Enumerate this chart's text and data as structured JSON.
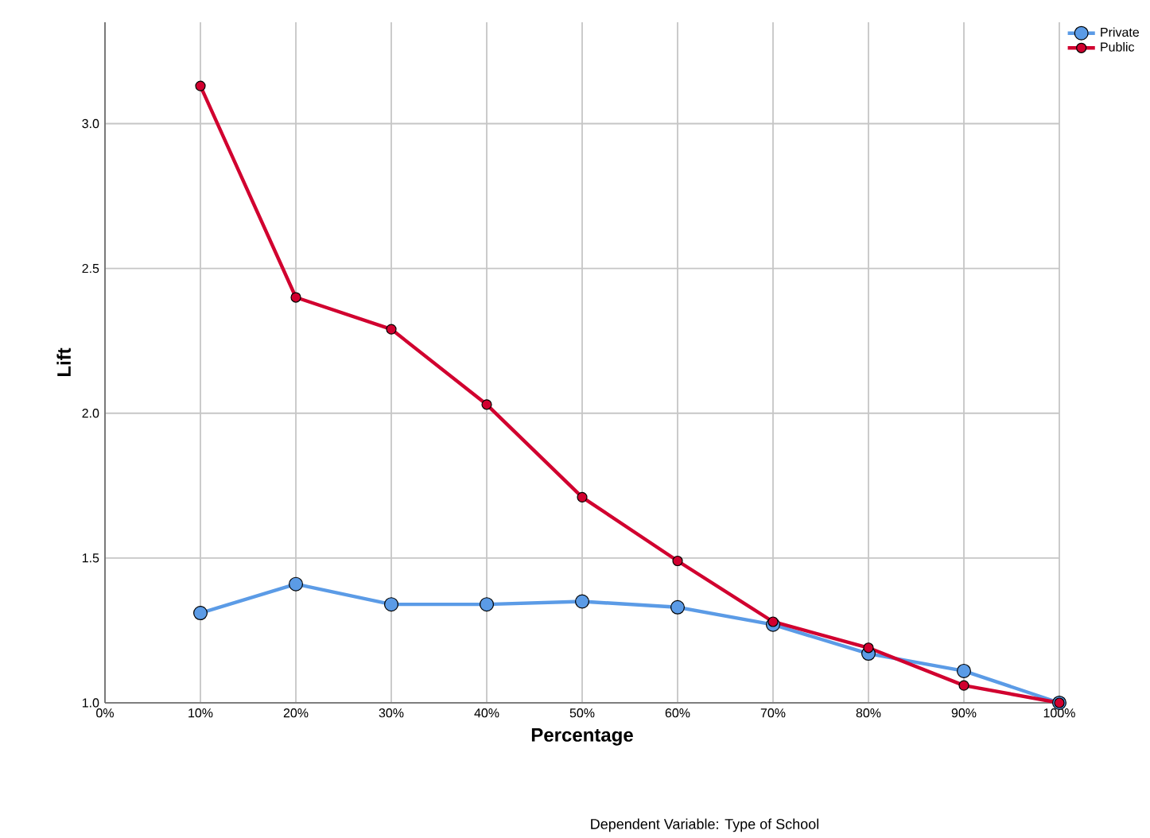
{
  "chart_data": {
    "type": "line",
    "xlabel": "Percentage",
    "ylabel": "Lift",
    "annotations": [
      "Dependent Variable: Type of School"
    ],
    "x": [
      10,
      20,
      30,
      40,
      50,
      60,
      70,
      80,
      90,
      100
    ],
    "series": [
      {
        "name": "Private",
        "color": "#5b9be6",
        "values": [
          1.31,
          1.41,
          1.34,
          1.34,
          1.35,
          1.33,
          1.27,
          1.17,
          1.11,
          1.0
        ]
      },
      {
        "name": "Public",
        "color": "#d1002f",
        "values": [
          3.13,
          2.4,
          2.29,
          2.03,
          1.71,
          1.49,
          1.28,
          1.19,
          1.06,
          1.0
        ]
      }
    ],
    "xlim": [
      0,
      100
    ],
    "xticks": [
      {
        "value": 0,
        "label": "0%"
      },
      {
        "value": 10,
        "label": "10%"
      },
      {
        "value": 20,
        "label": "20%"
      },
      {
        "value": 30,
        "label": "30%"
      },
      {
        "value": 40,
        "label": "40%"
      },
      {
        "value": 50,
        "label": "50%"
      },
      {
        "value": 60,
        "label": "60%"
      },
      {
        "value": 70,
        "label": "70%"
      },
      {
        "value": 80,
        "label": "80%"
      },
      {
        "value": 90,
        "label": "90%"
      },
      {
        "value": 100,
        "label": "100%"
      }
    ],
    "ylim": [
      1.0,
      3.35
    ],
    "yticks": [
      {
        "value": 1.0,
        "label": "1.0"
      },
      {
        "value": 1.5,
        "label": "1.5"
      },
      {
        "value": 2.0,
        "label": "2.0"
      },
      {
        "value": 2.5,
        "label": "2.5"
      },
      {
        "value": 3.0,
        "label": "3.0"
      }
    ],
    "grid": true,
    "legend": "top right",
    "marker": "circle",
    "line_style": "solid"
  }
}
